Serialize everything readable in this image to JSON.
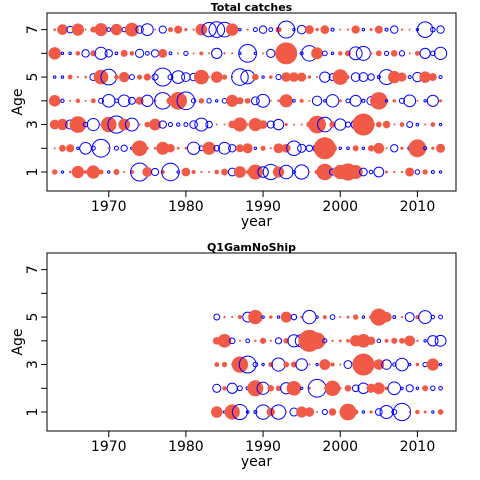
{
  "chart_data": [
    {
      "type": "scatter",
      "title": "Total catches",
      "xlabel": "year",
      "ylabel": "Age",
      "xlim": [
        1962,
        2015
      ],
      "ylim": [
        0.2,
        7.7
      ],
      "x_ticks": [
        1970,
        1980,
        1990,
        2000,
        2010
      ],
      "y_ticks": [
        1,
        3,
        5,
        7
      ],
      "y_minor_ticks": [
        2,
        4,
        6
      ],
      "years": [
        1963,
        2013
      ],
      "ages": [
        1,
        2,
        3,
        4,
        5,
        6,
        7
      ],
      "positive_color": "#f05a46",
      "negative_color": "#0000ff",
      "grid": false,
      "legend": "none"
    },
    {
      "type": "scatter",
      "title": "Q1GamNoShip",
      "xlabel": "year",
      "ylabel": "Age",
      "xlim": [
        1962,
        2015
      ],
      "ylim": [
        0.2,
        7.7
      ],
      "x_ticks": [
        1970,
        1980,
        1990,
        2000,
        2010
      ],
      "y_ticks": [
        1,
        3,
        5,
        7
      ],
      "y_minor_ticks": [
        2,
        4,
        6
      ],
      "years": [
        1984,
        2013
      ],
      "ages": [
        1,
        2,
        3,
        4,
        5
      ],
      "positive_color": "#f05a46",
      "negative_color": "#0000ff",
      "grid": false,
      "legend": "none"
    }
  ]
}
